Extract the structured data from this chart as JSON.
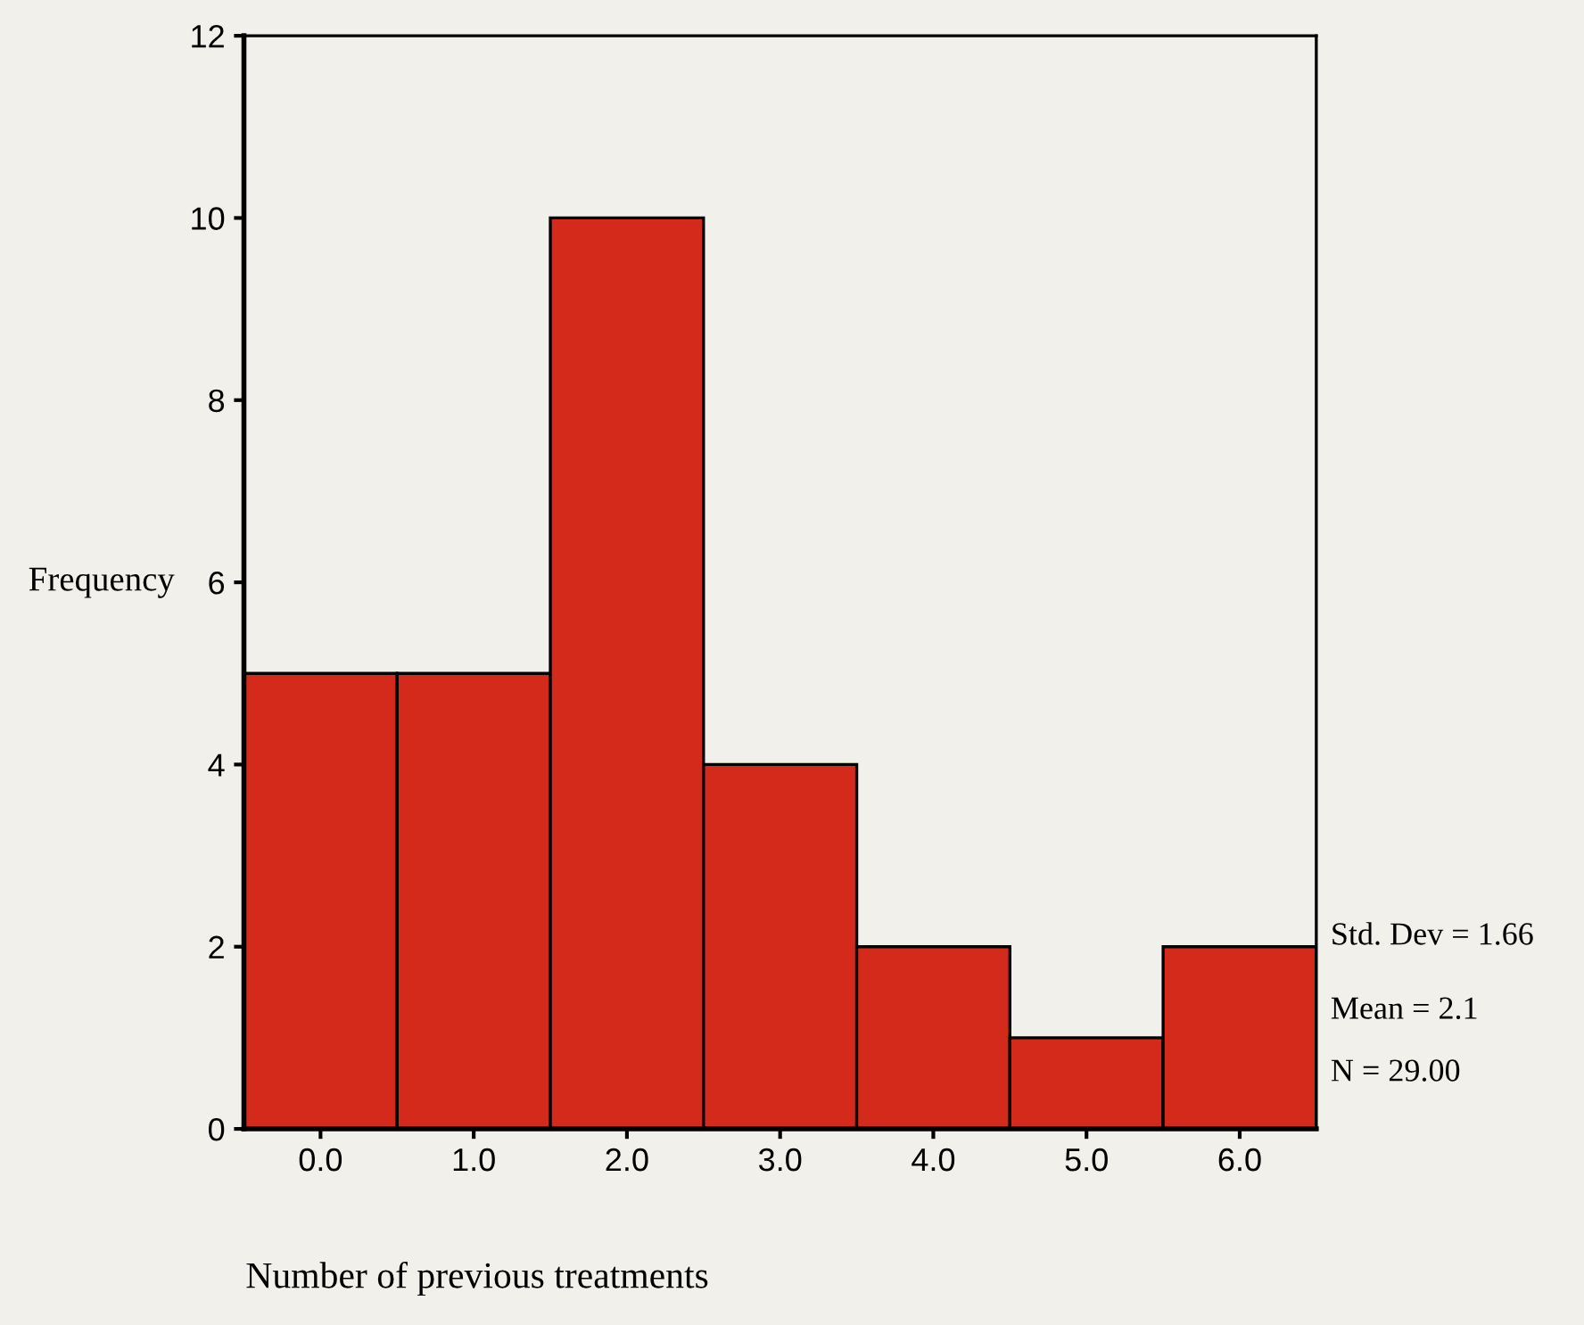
{
  "chart_data": {
    "type": "histogram",
    "bins": [
      -0.5,
      0.5,
      1.5,
      2.5,
      3.5,
      4.5,
      5.5,
      6.5
    ],
    "values": [
      5,
      5,
      10,
      4,
      2,
      1,
      2
    ],
    "color": "#d32a1c",
    "xlim": [
      -0.5,
      6.5
    ],
    "xticks": [
      {
        "value": 0,
        "label": "0.0"
      },
      {
        "value": 1,
        "label": "1.0"
      },
      {
        "value": 2,
        "label": "2.0"
      },
      {
        "value": 3,
        "label": "3.0"
      },
      {
        "value": 4,
        "label": "4.0"
      },
      {
        "value": 5,
        "label": "5.0"
      },
      {
        "value": 6,
        "label": "6.0"
      }
    ],
    "ylim": [
      0,
      12
    ],
    "yticks": [
      0,
      2,
      4,
      6,
      8,
      10,
      12
    ],
    "xlabel": "Number of previous treatments",
    "ylabel": "Frequency",
    "annotations": [
      "Std. Dev = 1.66",
      "Mean = 2.1",
      "N = 29.00"
    ],
    "grid": false
  }
}
